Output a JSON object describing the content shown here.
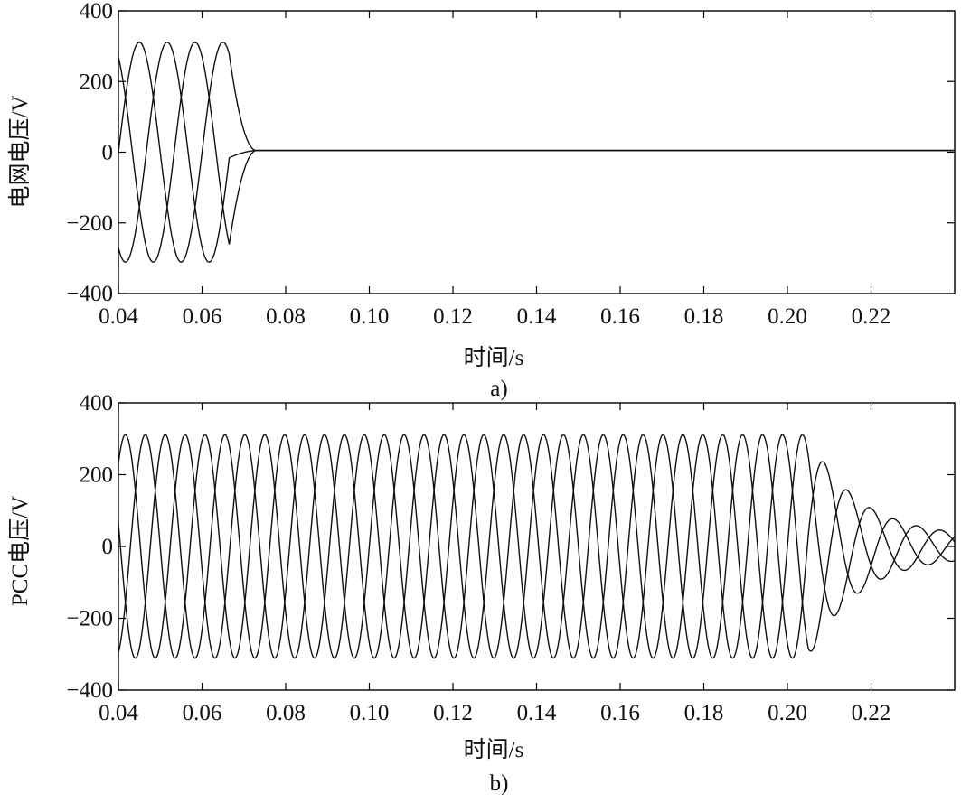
{
  "chart_data": [
    {
      "type": "line",
      "caption": "a)",
      "xlabel": "时间/s",
      "ylabel": "电网电压/V",
      "xlim": [
        0.04,
        0.24
      ],
      "ylim": [
        -400,
        400
      ],
      "xticks": [
        0.04,
        0.06,
        0.08,
        0.1,
        0.12,
        0.14,
        0.16,
        0.18,
        0.2,
        0.22
      ],
      "xtick_labels": [
        "0.04",
        "0.06",
        "0.08",
        "0.10",
        "0.12",
        "0.14",
        "0.16",
        "0.18",
        "0.20",
        "0.22"
      ],
      "yticks": [
        -400,
        -200,
        0,
        200,
        400
      ],
      "ytick_labels": [
        "−400",
        "−200",
        "0",
        "200",
        "400"
      ],
      "grid": false,
      "signal": {
        "phases": 3,
        "frequency_hz": 50,
        "amplitude": 311,
        "phase_offsets_deg": [
          0,
          -120,
          120
        ],
        "fault_time": 0.0665,
        "post_fault_value": 5,
        "decay_to_zero_by": 0.073
      }
    },
    {
      "type": "line",
      "caption": "b)",
      "xlabel": "时间/s",
      "ylabel": "PCC电压/V",
      "xlim": [
        0.04,
        0.24
      ],
      "ylim": [
        -400,
        400
      ],
      "xticks": [
        0.04,
        0.06,
        0.08,
        0.1,
        0.12,
        0.14,
        0.16,
        0.18,
        0.2,
        0.22
      ],
      "xtick_labels": [
        "0.04",
        "0.06",
        "0.08",
        "0.10",
        "0.12",
        "0.14",
        "0.16",
        "0.18",
        "0.20",
        "0.22"
      ],
      "yticks": [
        -400,
        -200,
        0,
        200,
        400
      ],
      "ytick_labels": [
        "−400",
        "−200",
        "0",
        "200",
        "400"
      ],
      "grid": false,
      "signal": {
        "phases": 3,
        "frequency_hz": 70,
        "amplitude": 311,
        "phase_offsets_deg": [
          0,
          -120,
          120
        ],
        "decay_start": 0.205,
        "post_decay_frequency_hz": 60,
        "decay_time_constant": 0.012,
        "residual_amplitude": 25
      }
    }
  ]
}
